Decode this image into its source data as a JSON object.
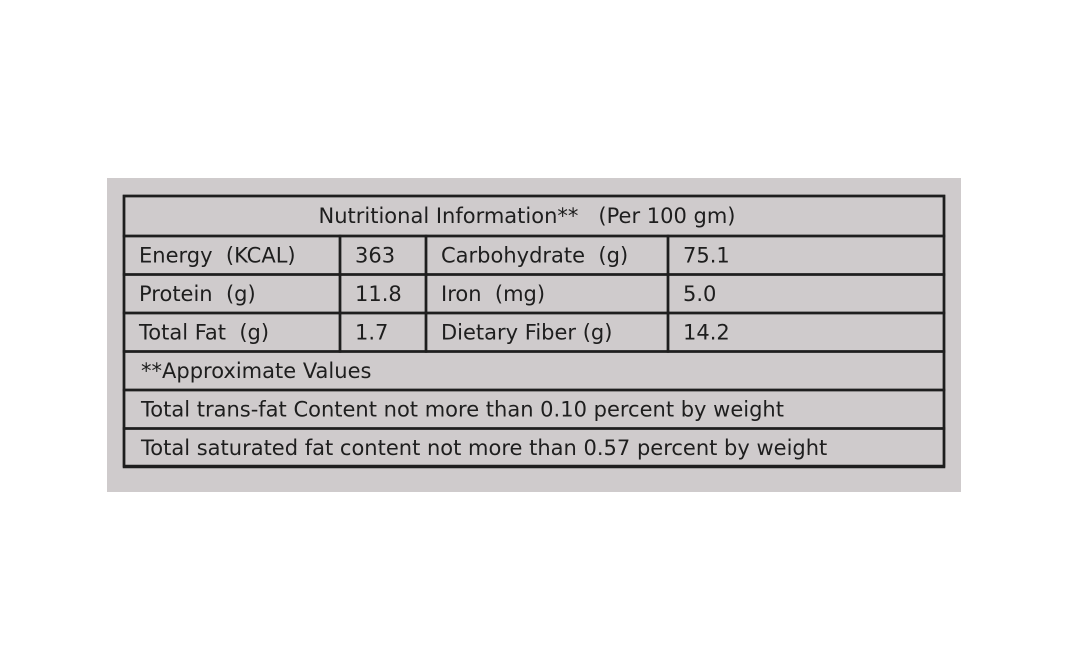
{
  "label": {
    "title": "Nutritional Information**   (Per 100 gm)",
    "rows": [
      [
        "Energy  (KCAL)",
        "363",
        "Carbohydrate  (g)",
        "75.1"
      ],
      [
        "Protein  (g)",
        "11.8",
        "Iron  (mg)",
        "5.0"
      ],
      [
        "Total Fat  (g)",
        "1.7",
        "Dietary Fiber (g)",
        "14.2"
      ]
    ],
    "notes": [
      "**Approximate Values",
      "Total trans-fat Content not more than 0.10 percent by weight",
      "Total saturated fat content not more than 0.57 percent by weight"
    ]
  }
}
